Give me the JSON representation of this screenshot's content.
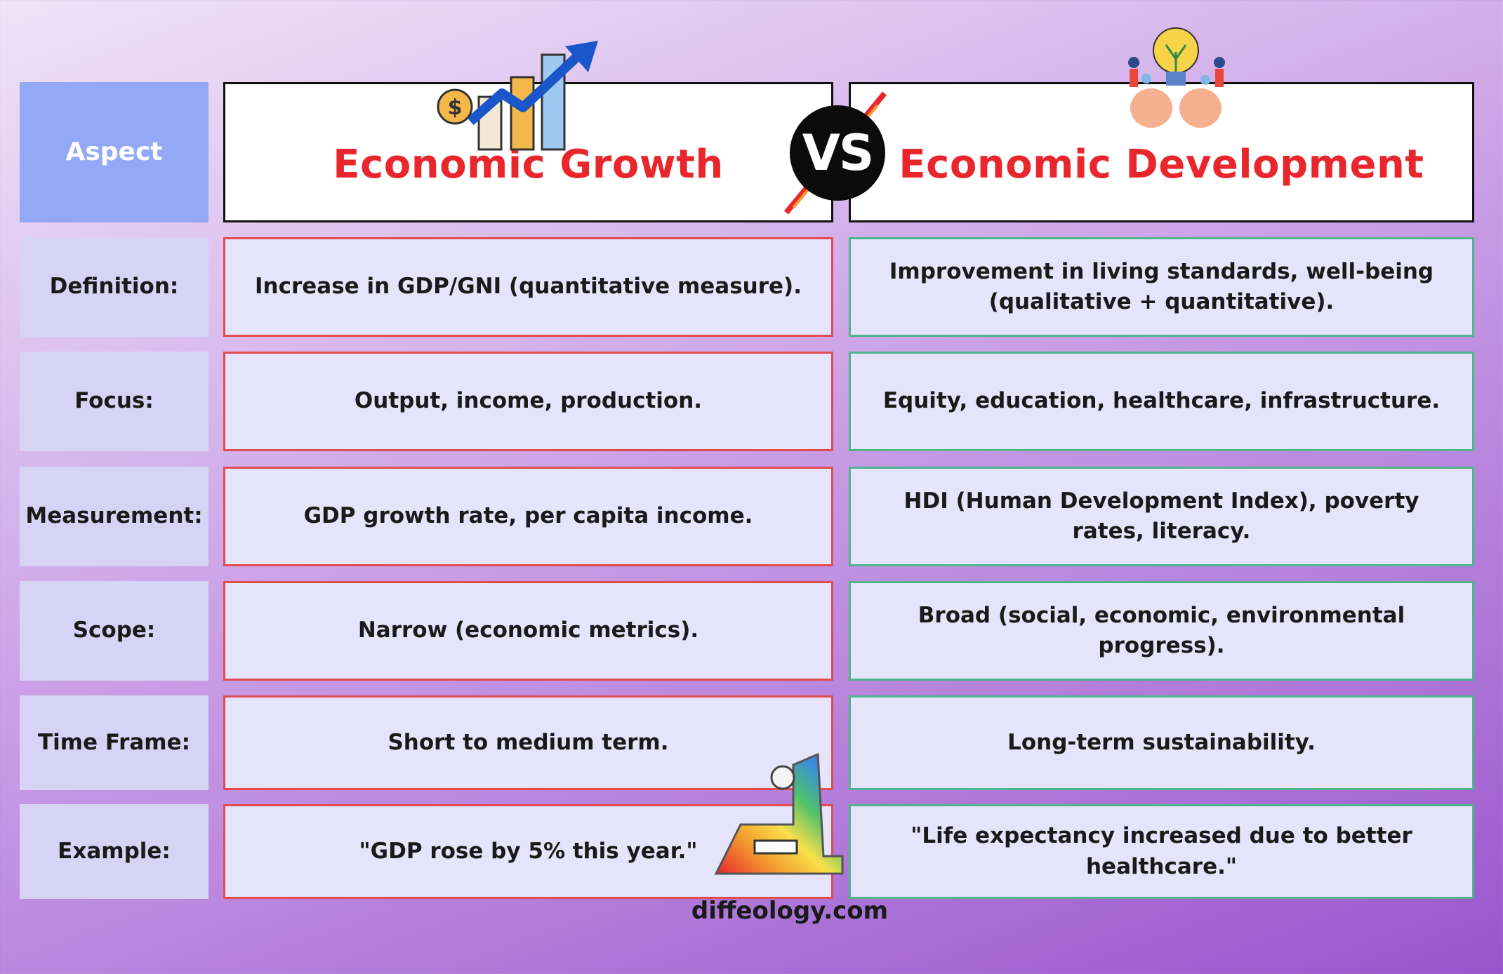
{
  "header": {
    "aspect_label": "Aspect",
    "growth_title": "Economic Growth",
    "development_title": "Economic Development",
    "vs_label": "VS"
  },
  "rows": [
    {
      "aspect": "Definition:",
      "growth": "Increase in GDP/GNI (quantitative measure).",
      "development": "Improvement in living standards, well-being (qualitative + quantitative)."
    },
    {
      "aspect": "Focus:",
      "growth": "Output, income, production.",
      "development": "Equity, education, healthcare, infrastructure."
    },
    {
      "aspect": "Measurement:",
      "growth": "GDP growth rate, per capita income.",
      "development": "HDI (Human Development Index), poverty rates, literacy."
    },
    {
      "aspect": "Scope:",
      "growth": "Narrow (economic metrics).",
      "development": "Broad (social, economic, environmental progress)."
    },
    {
      "aspect": "Time Frame:",
      "growth": "Short to medium term.",
      "development": "Long-term sustainability."
    },
    {
      "aspect": "Example:",
      "growth": "\"GDP rose by 5% this year.\"",
      "development": "\"Life expectancy increased due to better healthcare.\""
    }
  ],
  "footer": {
    "site": "diffeology.com"
  },
  "colors": {
    "growth_accent": "#e8262c",
    "development_border": "#4fb58c",
    "aspect_header": "#93a8f7"
  },
  "icons": {
    "growth": "growth-chart-icon",
    "development": "lightbulb-teamwork-icon",
    "logo": "diffeology-logo-icon"
  }
}
